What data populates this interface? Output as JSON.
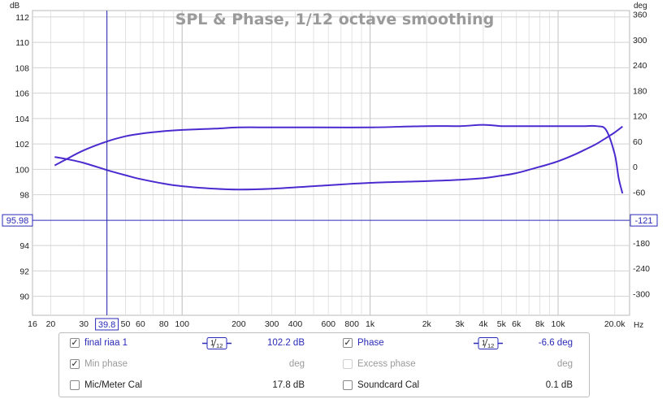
{
  "chart_data": {
    "type": "line",
    "title": "SPL & Phase, 1/12 octave smoothing",
    "x_unit": "Hz",
    "y_left_unit": "dB",
    "y_right_unit": "deg",
    "x_scale": "log",
    "xlim": [
      16,
      24000
    ],
    "ylim_left": [
      88.5,
      112.5
    ],
    "ylim_right": [
      -351,
      369
    ],
    "grid": true,
    "x_ticks": [
      "16",
      "20",
      "30",
      "39.8",
      "50",
      "60",
      "80",
      "100",
      "200",
      "300",
      "400",
      "600",
      "800",
      "1k",
      "2k",
      "3k",
      "4k",
      "5k",
      "6k",
      "8k",
      "10k",
      "20.0k"
    ],
    "y_left_ticks": [
      "112",
      "110",
      "108",
      "106",
      "104",
      "102",
      "100",
      "98",
      "95.98",
      "94",
      "92",
      "90"
    ],
    "y_right_ticks": [
      "360",
      "300",
      "240",
      "180",
      "120",
      "60",
      "0",
      "-60",
      "-121",
      "-180",
      "-240",
      "-300"
    ],
    "series": [
      {
        "name": "final riaa 1",
        "axis": "left",
        "color": "#4b2bcf",
        "x": [
          21,
          25,
          30,
          40,
          50,
          60,
          80,
          100,
          150,
          200,
          300,
          500,
          1000,
          2000,
          3000,
          4000,
          5000,
          6000,
          8000,
          10000,
          12000,
          14000,
          16000,
          18000,
          20000,
          21000,
          22000
        ],
        "y": [
          100.3,
          100.9,
          101.5,
          102.2,
          102.6,
          102.8,
          103.0,
          103.1,
          103.2,
          103.3,
          103.3,
          103.3,
          103.3,
          103.4,
          103.4,
          103.5,
          103.4,
          103.4,
          103.4,
          103.4,
          103.4,
          103.4,
          103.4,
          103.1,
          101.2,
          99.3,
          98.1
        ]
      },
      {
        "name": "Phase",
        "axis": "right",
        "color": "#4b2bcf",
        "x": [
          21,
          25,
          30,
          40,
          50,
          60,
          80,
          100,
          150,
          200,
          300,
          500,
          1000,
          2000,
          3000,
          4000,
          5000,
          6000,
          8000,
          10000,
          12000,
          14000,
          16000,
          18000,
          20000,
          22000
        ],
        "y": [
          23,
          17,
          9,
          -8,
          -20,
          -29,
          -40,
          -46,
          -52,
          -54,
          -52,
          -46,
          -38,
          -34,
          -31,
          -27,
          -21,
          -15,
          0,
          13,
          27,
          41,
          54,
          68,
          81,
          95
        ]
      }
    ],
    "cursor": {
      "x_label": "39.8",
      "y_left_label": "95.98",
      "y_right_label": "-121"
    }
  },
  "legend": {
    "rows": [
      {
        "left_label": "final riaa 1",
        "left_checked": "✓",
        "left_smoothing_num": "1",
        "left_smoothing_den": "12",
        "left_value": "102.2 dB",
        "right_label": "Phase",
        "right_checked": "✓",
        "right_smoothing_num": "1",
        "right_smoothing_den": "12",
        "right_value": "-6.6 deg"
      },
      {
        "left_label": "Min phase",
        "left_checked": "✓",
        "left_value": "deg",
        "right_label": "Excess phase",
        "right_checked": "",
        "right_value": "deg"
      },
      {
        "left_label": "Mic/Meter Cal",
        "left_checked": "",
        "left_value": "17.8 dB",
        "right_label": "Soundcard Cal",
        "right_checked": "",
        "right_value": "0.1 dB"
      }
    ]
  }
}
